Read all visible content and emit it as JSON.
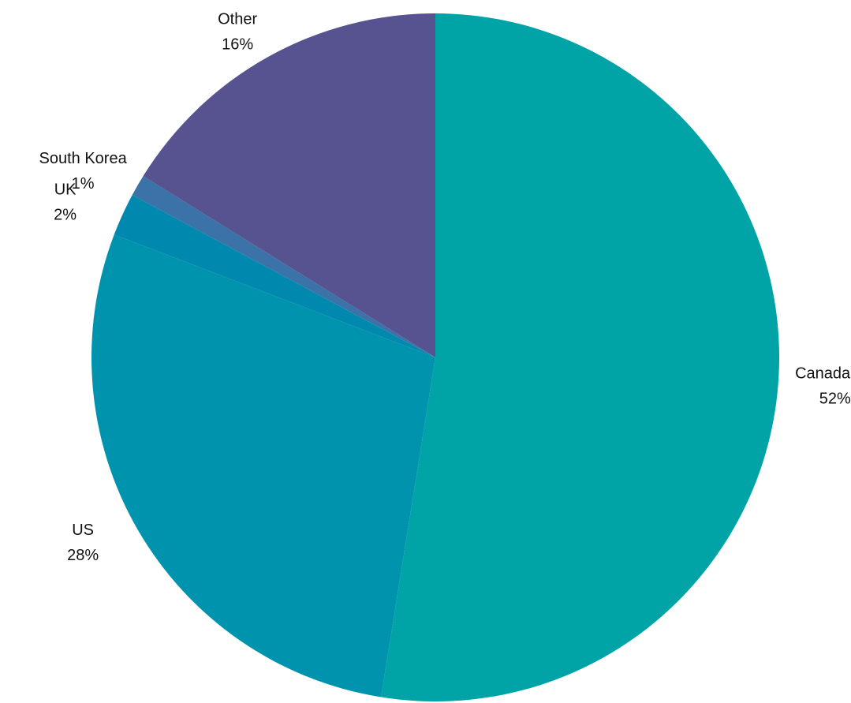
{
  "chart_data": {
    "type": "pie",
    "categories": [
      "Canada",
      "US",
      "UK",
      "South Korea",
      "Other"
    ],
    "values": [
      52,
      28,
      2,
      1,
      16
    ],
    "value_labels": [
      "52%",
      "28%",
      "2%",
      "1%",
      "16%"
    ],
    "colors": [
      "#00a3a6",
      "#0093ae",
      "#0088ae",
      "#3b73a8",
      "#575290"
    ]
  }
}
